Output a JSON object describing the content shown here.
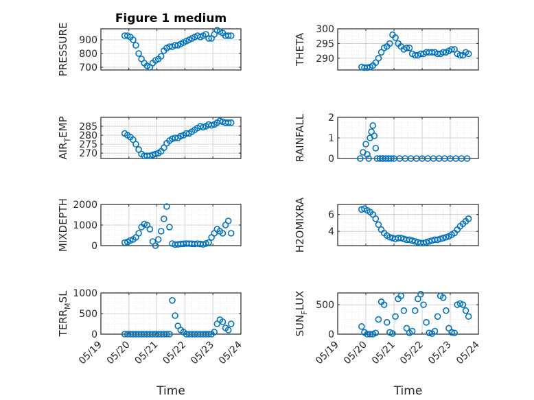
{
  "figure_title": "Figure 1 medium",
  "marker_color": "#0072BD",
  "chart_data": [
    {
      "type": "scatter",
      "id": "pressure",
      "title": "Figure 1 medium",
      "ylabel": "PRESSURE",
      "ylabel_sub": "",
      "ylabel_tail": "",
      "xlabel": "",
      "ylim": [
        680,
        980
      ],
      "yticks": [
        700,
        800,
        900
      ],
      "x": [
        0.85,
        0.95,
        1.05,
        1.15,
        1.25,
        1.35,
        1.45,
        1.55,
        1.65,
        1.75,
        1.85,
        1.95,
        2.05,
        2.15,
        2.25,
        2.35,
        2.45,
        2.55,
        2.65,
        2.75,
        2.85,
        2.95,
        3.05,
        3.15,
        3.25,
        3.35,
        3.45,
        3.55,
        3.65,
        3.75,
        3.85,
        3.95,
        4.05,
        4.15,
        4.25,
        4.35,
        4.45,
        4.55,
        4.65
      ],
      "y": [
        930,
        930,
        920,
        900,
        860,
        800,
        760,
        730,
        710,
        700,
        730,
        750,
        760,
        780,
        820,
        840,
        850,
        850,
        860,
        860,
        870,
        880,
        890,
        900,
        910,
        920,
        930,
        920,
        930,
        940,
        910,
        910,
        940,
        970,
        960,
        950,
        930,
        930,
        930
      ]
    },
    {
      "type": "scatter",
      "id": "theta",
      "ylabel": "THETA",
      "ylabel_sub": "",
      "ylabel_tail": "",
      "xlabel": "",
      "ylim": [
        286,
        300
      ],
      "yticks": [
        290,
        295,
        300
      ],
      "x": [
        0.85,
        0.95,
        1.05,
        1.15,
        1.25,
        1.35,
        1.45,
        1.55,
        1.65,
        1.75,
        1.85,
        1.95,
        2.05,
        2.15,
        2.25,
        2.35,
        2.45,
        2.55,
        2.65,
        2.75,
        2.85,
        2.95,
        3.05,
        3.15,
        3.25,
        3.35,
        3.45,
        3.55,
        3.65,
        3.75,
        3.85,
        3.95,
        4.05,
        4.15,
        4.25,
        4.35,
        4.45,
        4.55,
        4.65
      ],
      "y": [
        287,
        286.8,
        286.8,
        287,
        287.5,
        288.5,
        290,
        292,
        293.5,
        294,
        295,
        298,
        297,
        295,
        294,
        293,
        293.5,
        293.5,
        291.5,
        291,
        291,
        291.5,
        291.5,
        292,
        292,
        292,
        292,
        291.5,
        291.5,
        292,
        292,
        292.5,
        293,
        293,
        291.5,
        291,
        291,
        292,
        291.5
      ]
    },
    {
      "type": "scatter",
      "id": "air_temp",
      "ylabel": "AIR",
      "ylabel_sub": "T",
      "ylabel_tail": "EMP",
      "xlabel": "",
      "ylim": [
        267,
        290
      ],
      "yticks": [
        270,
        275,
        280,
        285
      ],
      "x": [
        0.85,
        0.95,
        1.05,
        1.15,
        1.25,
        1.35,
        1.45,
        1.55,
        1.65,
        1.75,
        1.85,
        1.95,
        2.05,
        2.15,
        2.25,
        2.35,
        2.45,
        2.55,
        2.65,
        2.75,
        2.85,
        2.95,
        3.05,
        3.15,
        3.25,
        3.35,
        3.45,
        3.55,
        3.65,
        3.75,
        3.85,
        3.95,
        4.05,
        4.15,
        4.25,
        4.35,
        4.45,
        4.55,
        4.65
      ],
      "y": [
        281,
        280,
        279,
        277.5,
        275,
        272,
        269.5,
        268.5,
        268.5,
        268.5,
        269,
        269.5,
        270,
        271,
        273,
        275.5,
        277,
        278,
        278.5,
        278.5,
        279.5,
        280,
        281,
        281,
        282,
        283,
        284,
        285,
        284.5,
        285,
        286,
        285.5,
        286,
        287,
        288,
        287.5,
        287,
        287,
        287
      ]
    },
    {
      "type": "scatter",
      "id": "rainfall",
      "ylabel": "RAINFALL",
      "ylabel_sub": "",
      "ylabel_tail": "",
      "xlabel": "",
      "ylim": [
        0,
        2
      ],
      "yticks": [
        0,
        1,
        2
      ],
      "x": [
        0.8,
        0.9,
        1.0,
        1.05,
        1.1,
        1.15,
        1.2,
        1.25,
        1.3,
        1.35,
        1.4,
        1.5,
        1.6,
        1.7,
        1.8,
        1.9,
        2.0,
        2.2,
        2.4,
        2.6,
        2.8,
        3.0,
        3.2,
        3.4,
        3.6,
        3.8,
        4.0,
        4.2,
        4.4,
        4.6
      ],
      "y": [
        0,
        0.3,
        0.7,
        0.2,
        0,
        1,
        1.3,
        1.6,
        1.1,
        0.5,
        0,
        0,
        0,
        0,
        0,
        0,
        0,
        0,
        0,
        0,
        0,
        0,
        0,
        0,
        0,
        0,
        0,
        0,
        0,
        0
      ]
    },
    {
      "type": "scatter",
      "id": "mixdepth",
      "ylabel": "MIXDEPTH",
      "ylabel_sub": "",
      "ylabel_tail": "",
      "xlabel": "",
      "ylim": [
        0,
        2000
      ],
      "yticks": [
        0,
        1000,
        2000
      ],
      "x": [
        0.85,
        0.95,
        1.05,
        1.15,
        1.25,
        1.35,
        1.45,
        1.55,
        1.65,
        1.75,
        1.85,
        1.95,
        2.05,
        2.15,
        2.25,
        2.35,
        2.45,
        2.55,
        2.65,
        2.75,
        2.85,
        2.95,
        3.05,
        3.15,
        3.25,
        3.35,
        3.45,
        3.55,
        3.65,
        3.75,
        3.85,
        3.95,
        4.05,
        4.15,
        4.25,
        4.35,
        4.45,
        4.55,
        4.65
      ],
      "y": [
        150,
        180,
        250,
        300,
        400,
        600,
        900,
        1050,
        1000,
        800,
        200,
        0,
        300,
        700,
        1300,
        1900,
        900,
        100,
        50,
        60,
        80,
        90,
        100,
        100,
        90,
        80,
        100,
        80,
        60,
        100,
        150,
        400,
        600,
        800,
        700,
        600,
        1000,
        1200,
        600
      ]
    },
    {
      "type": "scatter",
      "id": "h2omixra",
      "ylabel": "H2OMIXRA",
      "ylabel_sub": "",
      "ylabel_tail": "",
      "xlabel": "",
      "ylim": [
        2.3,
        7.2
      ],
      "yticks": [
        4,
        6
      ],
      "x": [
        0.85,
        0.95,
        1.05,
        1.15,
        1.25,
        1.35,
        1.45,
        1.55,
        1.65,
        1.75,
        1.85,
        1.95,
        2.05,
        2.15,
        2.25,
        2.35,
        2.45,
        2.55,
        2.65,
        2.75,
        2.85,
        2.95,
        3.05,
        3.15,
        3.25,
        3.35,
        3.45,
        3.55,
        3.65,
        3.75,
        3.85,
        3.95,
        4.05,
        4.15,
        4.25,
        4.35,
        4.45,
        4.55,
        4.65
      ],
      "y": [
        6.6,
        6.7,
        6.5,
        6.3,
        6,
        5.5,
        4.8,
        4.2,
        3.8,
        3.5,
        3.3,
        3.2,
        3.1,
        3.2,
        3.2,
        3.1,
        3,
        3,
        2.9,
        2.8,
        2.7,
        2.6,
        2.6,
        2.7,
        2.8,
        2.9,
        3,
        3,
        3.1,
        3.2,
        3.3,
        3.4,
        3.6,
        3.8,
        4.2,
        4.6,
        4.9,
        5.2,
        5.5
      ]
    },
    {
      "type": "scatter",
      "id": "terr_msl",
      "ylabel": "TERR",
      "ylabel_sub": "M",
      "ylabel_tail": "SL",
      "xlabel": "Time",
      "ylim": [
        0,
        1000
      ],
      "yticks": [
        0,
        500,
        1000
      ],
      "x": [
        0.85,
        0.95,
        1.05,
        1.15,
        1.25,
        1.35,
        1.45,
        1.55,
        1.65,
        1.75,
        1.85,
        1.95,
        2.05,
        2.15,
        2.25,
        2.35,
        2.45,
        2.55,
        2.65,
        2.75,
        2.85,
        2.95,
        3.05,
        3.15,
        3.25,
        3.35,
        3.45,
        3.55,
        3.65,
        3.75,
        3.85,
        3.95,
        4.05,
        4.15,
        4.25,
        4.35,
        4.45,
        4.55,
        4.65
      ],
      "y": [
        0,
        0,
        0,
        0,
        0,
        0,
        0,
        0,
        0,
        0,
        0,
        0,
        0,
        0,
        0,
        0,
        0,
        820,
        450,
        200,
        100,
        50,
        0,
        0,
        0,
        0,
        0,
        0,
        0,
        0,
        0,
        0,
        50,
        250,
        350,
        300,
        150,
        100,
        250
      ]
    },
    {
      "type": "scatter",
      "id": "sun_flux",
      "ylabel": "SUN",
      "ylabel_sub": "F",
      "ylabel_tail": "LUX",
      "xlabel": "Time",
      "ylim": [
        0,
        700
      ],
      "yticks": [
        0,
        500
      ],
      "x": [
        0.85,
        0.95,
        1.05,
        1.15,
        1.25,
        1.35,
        1.45,
        1.55,
        1.65,
        1.75,
        1.85,
        1.95,
        2.05,
        2.15,
        2.25,
        2.35,
        2.45,
        2.55,
        2.65,
        2.75,
        2.85,
        2.95,
        3.05,
        3.15,
        3.25,
        3.35,
        3.45,
        3.55,
        3.65,
        3.75,
        3.85,
        3.95,
        4.05,
        4.15,
        4.25,
        4.35,
        4.45,
        4.55,
        4.65
      ],
      "y": [
        130,
        30,
        0,
        0,
        0,
        20,
        250,
        550,
        500,
        200,
        30,
        10,
        300,
        600,
        650,
        400,
        100,
        20,
        50,
        400,
        600,
        680,
        500,
        200,
        20,
        10,
        50,
        300,
        650,
        620,
        400,
        100,
        30,
        20,
        500,
        520,
        500,
        400,
        300
      ]
    }
  ],
  "shared_x": {
    "label": "Time",
    "lim": [
      0,
      5
    ],
    "ticks": [
      0,
      1,
      2,
      3,
      4,
      5
    ],
    "ticklabels": [
      "05/19",
      "05/20",
      "05/21",
      "05/22",
      "05/23",
      "05/24"
    ]
  }
}
